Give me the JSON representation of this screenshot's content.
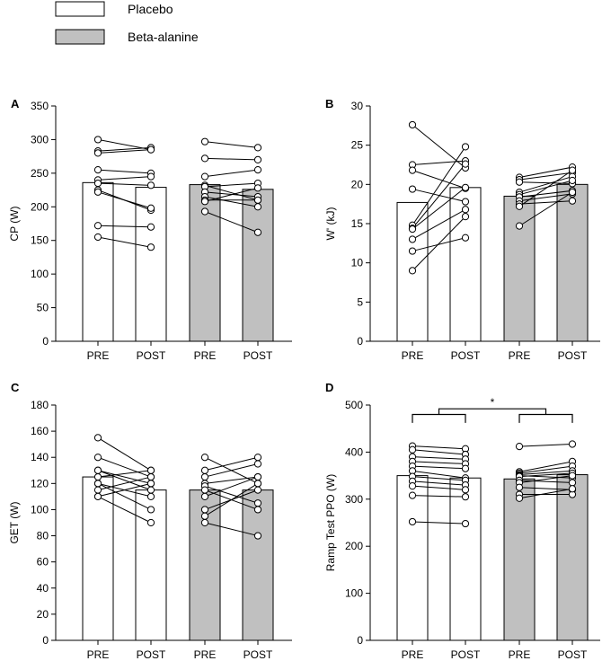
{
  "legend": [
    {
      "label": "Placebo",
      "color": "#ffffff"
    },
    {
      "label": "Beta-alanine",
      "color": "#c0c0c0"
    }
  ],
  "colors": {
    "placebo": "#ffffff",
    "beta_alanine": "#c0c0c0",
    "axis": "#000000"
  },
  "chart_data": [
    {
      "type": "bar",
      "panel": "A",
      "ylabel": "CP (W)",
      "ylim": [
        0,
        350
      ],
      "ystep": 50,
      "categories": [
        "PRE",
        "POST",
        "PRE",
        "POST"
      ],
      "groups": [
        "Placebo",
        "Placebo",
        "Beta-alanine",
        "Beta-alanine"
      ],
      "values": [
        236,
        229,
        233,
        226
      ],
      "individual_pairs": [
        [
          [
            300,
            285
          ],
          [
            283,
            288
          ],
          [
            280,
            285
          ],
          [
            255,
            250
          ],
          [
            240,
            245
          ],
          [
            235,
            232
          ],
          [
            225,
            195
          ],
          [
            222,
            198
          ],
          [
            172,
            170
          ],
          [
            155,
            140
          ]
        ],
        [
          [
            297,
            288
          ],
          [
            272,
            270
          ],
          [
            245,
            255
          ],
          [
            232,
            210
          ],
          [
            230,
            235
          ],
          [
            222,
            215
          ],
          [
            215,
            200
          ],
          [
            210,
            210
          ],
          [
            208,
            228
          ],
          [
            193,
            162
          ]
        ]
      ]
    },
    {
      "type": "bar",
      "panel": "B",
      "ylabel": "W' (kJ)",
      "ylim": [
        0,
        30
      ],
      "ystep": 5,
      "categories": [
        "PRE",
        "POST",
        "PRE",
        "POST"
      ],
      "groups": [
        "Placebo",
        "Placebo",
        "Beta-alanine",
        "Beta-alanine"
      ],
      "values": [
        17.7,
        19.6,
        18.5,
        20.0
      ],
      "individual_pairs": [
        [
          [
            27.6,
            22.1
          ],
          [
            22.5,
            23.0
          ],
          [
            21.8,
            19.5
          ],
          [
            19.4,
            17.8
          ],
          [
            14.8,
            24.8
          ],
          [
            14.4,
            22.6
          ],
          [
            14.3,
            19.6
          ],
          [
            13.0,
            16.8
          ],
          [
            9.0,
            15.9
          ],
          [
            11.5,
            13.2
          ]
        ],
        [
          [
            20.9,
            22.2
          ],
          [
            20.6,
            21.5
          ],
          [
            20.3,
            20.1
          ],
          [
            19.0,
            21.0
          ],
          [
            18.7,
            20.5
          ],
          [
            18.4,
            19.2
          ],
          [
            17.9,
            18.8
          ],
          [
            17.5,
            17.9
          ],
          [
            17.2,
            21.8
          ],
          [
            14.7,
            19.0
          ]
        ]
      ]
    },
    {
      "type": "bar",
      "panel": "C",
      "ylabel": "GET (W)",
      "ylim": [
        0,
        180
      ],
      "ystep": 20,
      "categories": [
        "PRE",
        "POST",
        "PRE",
        "POST"
      ],
      "groups": [
        "Placebo",
        "Placebo",
        "Beta-alanine",
        "Beta-alanine"
      ],
      "values": [
        125,
        115,
        115,
        115
      ],
      "individual_pairs": [
        [
          [
            155,
            130
          ],
          [
            140,
            125
          ],
          [
            130,
            120
          ],
          [
            130,
            115
          ],
          [
            125,
            130
          ],
          [
            120,
            110
          ],
          [
            120,
            100
          ],
          [
            115,
            125
          ],
          [
            110,
            120
          ],
          [
            110,
            90
          ]
        ],
        [
          [
            140,
            120
          ],
          [
            130,
            140
          ],
          [
            125,
            135
          ],
          [
            120,
            125
          ],
          [
            118,
            105
          ],
          [
            115,
            100
          ],
          [
            110,
            125
          ],
          [
            100,
            115
          ],
          [
            95,
            120
          ],
          [
            90,
            80
          ]
        ]
      ]
    },
    {
      "type": "bar",
      "panel": "D",
      "ylabel": "Ramp Test PPO (W)",
      "ylim": [
        0,
        500
      ],
      "ystep": 100,
      "categories": [
        "PRE",
        "POST",
        "PRE",
        "POST"
      ],
      "groups": [
        "Placebo",
        "Placebo",
        "Beta-alanine",
        "Beta-alanine"
      ],
      "values": [
        350,
        345,
        343,
        352
      ],
      "annotation": "*",
      "individual_pairs": [
        [
          [
            413,
            407
          ],
          [
            405,
            395
          ],
          [
            390,
            385
          ],
          [
            380,
            375
          ],
          [
            370,
            365
          ],
          [
            360,
            345
          ],
          [
            348,
            340
          ],
          [
            338,
            330
          ],
          [
            328,
            320
          ],
          [
            308,
            305
          ],
          [
            252,
            248
          ]
        ],
        [
          [
            412,
            417
          ],
          [
            358,
            380
          ],
          [
            355,
            370
          ],
          [
            352,
            360
          ],
          [
            350,
            345
          ],
          [
            348,
            355
          ],
          [
            340,
            335
          ],
          [
            335,
            350
          ],
          [
            325,
            320
          ],
          [
            310,
            310
          ],
          [
            302,
            322
          ]
        ]
      ]
    }
  ]
}
